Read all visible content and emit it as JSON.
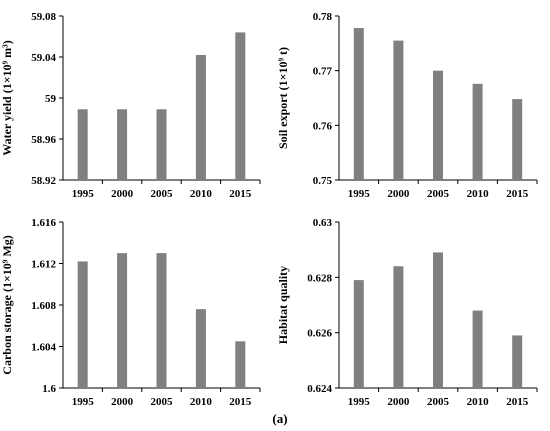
{
  "figure": {
    "caption": "(a)",
    "bar_color": "#808080",
    "axis_color": "#000000"
  },
  "chart_data": [
    {
      "type": "bar",
      "ylabel": "Water yield (1×10⁹ m³)",
      "categories": [
        "1995",
        "2000",
        "2005",
        "2010",
        "2015"
      ],
      "values": [
        58.989,
        58.989,
        58.989,
        59.042,
        59.064
      ],
      "ylim": [
        58.92,
        59.08
      ],
      "yticks": [
        "58.92",
        "58.96",
        "59",
        "59.04",
        "59.08"
      ],
      "grid": false
    },
    {
      "type": "bar",
      "ylabel": "Soil export (1×10⁹ t)",
      "categories": [
        "1995",
        "2000",
        "2005",
        "2010",
        "2015"
      ],
      "values": [
        0.7778,
        0.7755,
        0.77,
        0.7676,
        0.7648
      ],
      "ylim": [
        0.75,
        0.78
      ],
      "yticks": [
        "0.75",
        "0.76",
        "0.77",
        "0.78"
      ],
      "grid": false
    },
    {
      "type": "bar",
      "ylabel": "Carbon storage (1×10⁹ Mg)",
      "categories": [
        "1995",
        "2000",
        "2005",
        "2010",
        "2015"
      ],
      "values": [
        1.6122,
        1.613,
        1.613,
        1.6076,
        1.6045
      ],
      "ylim": [
        1.6,
        1.616
      ],
      "yticks": [
        "1.6",
        "1.604",
        "1.608",
        "1.612",
        "1.616"
      ],
      "grid": false
    },
    {
      "type": "bar",
      "ylabel": "Habitat quality",
      "categories": [
        "1995",
        "2000",
        "2005",
        "2010",
        "2015"
      ],
      "values": [
        0.6279,
        0.6284,
        0.6289,
        0.6268,
        0.6259
      ],
      "ylim": [
        0.624,
        0.63
      ],
      "yticks": [
        "0.624",
        "0.626",
        "0.628",
        "0.63"
      ],
      "grid": false
    }
  ]
}
